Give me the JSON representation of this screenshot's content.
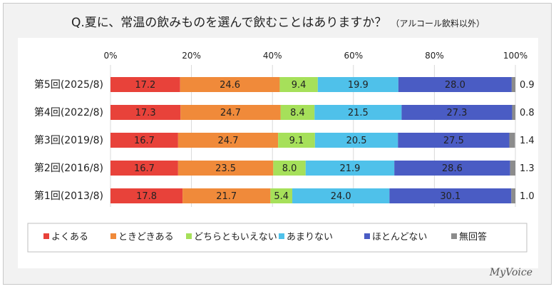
{
  "title": {
    "main": "Q.夏に、常温の飲みものを選んで飲むことはありますか？",
    "note": "（アルコール飲料以外）"
  },
  "brand": "MyVoice",
  "chart_data": {
    "type": "bar",
    "stacked": true,
    "orientation": "horizontal",
    "title": "Q.夏に、常温の飲みものを選んで飲むことはありますか？（アルコール飲料以外）",
    "xlim": [
      0,
      100
    ],
    "x_ticks": [
      "0%",
      "20%",
      "40%",
      "60%",
      "80%",
      "100%"
    ],
    "categories": [
      "第5回(2025/8)",
      "第4回(2022/8)",
      "第3回(2019/8)",
      "第2回(2016/8)",
      "第1回(2013/8)"
    ],
    "series": [
      {
        "name": "よくある",
        "color": "#e8423a",
        "values": [
          17.2,
          17.3,
          16.7,
          16.7,
          17.8
        ]
      },
      {
        "name": "ときどきある",
        "color": "#f08a3a",
        "values": [
          24.6,
          24.7,
          24.7,
          23.5,
          21.7
        ]
      },
      {
        "name": "どちらともいえない",
        "color": "#a6e05a",
        "values": [
          9.4,
          8.4,
          9.1,
          8.0,
          5.4
        ]
      },
      {
        "name": "あまりない",
        "color": "#4fc1ea",
        "values": [
          19.9,
          21.5,
          20.5,
          21.9,
          24.0
        ]
      },
      {
        "name": "ほとんどない",
        "color": "#4a5cc4",
        "values": [
          28.0,
          27.3,
          27.5,
          28.6,
          30.1
        ]
      },
      {
        "name": "無回答",
        "color": "#8c8c8c",
        "values": [
          0.9,
          0.8,
          1.4,
          1.3,
          1.0
        ]
      }
    ],
    "legend_position": "bottom"
  }
}
